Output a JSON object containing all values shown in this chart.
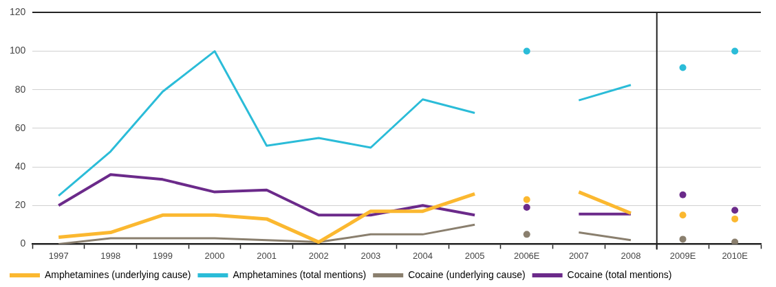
{
  "chart_data": {
    "type": "line",
    "categories": [
      "1997",
      "1998",
      "1999",
      "2000",
      "2001",
      "2002",
      "2003",
      "2004",
      "2005",
      "2006E",
      "2007",
      "2008",
      "2009E",
      "2010E"
    ],
    "ref_lines": [
      {
        "axis": "x",
        "value": "2009E",
        "color": "#222222"
      }
    ],
    "ylim": [
      0,
      120
    ],
    "yticks": [
      0,
      20,
      40,
      60,
      80,
      100,
      120
    ],
    "grid": "y",
    "legend": "bottom",
    "marker": "none",
    "line_style": "solid",
    "series": [
      {
        "name": "Amphetamines (underlying cause)",
        "color": "#fbb830",
        "values": [
          3.5,
          6,
          15,
          15,
          13,
          1,
          17,
          17,
          26,
          null,
          27,
          16,
          null,
          null
        ]
      },
      {
        "name": "Amphetamines (total mentions)",
        "color": "#2bbcd8",
        "values": [
          25,
          48,
          79,
          100,
          51,
          55,
          50,
          75,
          68,
          null,
          74.5,
          82.5,
          null,
          null
        ]
      },
      {
        "name": "Cocaine (underlying cause)",
        "color": "#8a7f6e",
        "values": [
          0,
          3,
          3,
          3,
          2,
          1,
          5,
          5,
          10,
          null,
          6,
          2,
          null,
          null
        ]
      },
      {
        "name": "Cocaine (total mentions)",
        "color": "#6b2a8a",
        "values": [
          20,
          36,
          33.5,
          27,
          28,
          15,
          15,
          20,
          15,
          null,
          15.5,
          15.5,
          null,
          null
        ]
      },
      {
        "type": "scatter",
        "marker": "circle",
        "color": "#fbb830",
        "x": [
          "2006E",
          "2009E",
          "2010E"
        ],
        "values": [
          23,
          15,
          13
        ]
      },
      {
        "type": "scatter",
        "marker": "circle",
        "color": "#2bbcd8",
        "x": [
          "2006E",
          "2009E",
          "2010E"
        ],
        "values": [
          100,
          91.5,
          100
        ]
      },
      {
        "type": "scatter",
        "marker": "circle",
        "color": "#8a7f6e",
        "x": [
          "2006E",
          "2009E",
          "2010E"
        ],
        "values": [
          5,
          2.5,
          1
        ]
      },
      {
        "type": "scatter",
        "marker": "circle",
        "color": "#6b2a8a",
        "x": [
          "2006E",
          "2009E",
          "2010E"
        ],
        "values": [
          19,
          25.5,
          17.5
        ]
      }
    ]
  }
}
